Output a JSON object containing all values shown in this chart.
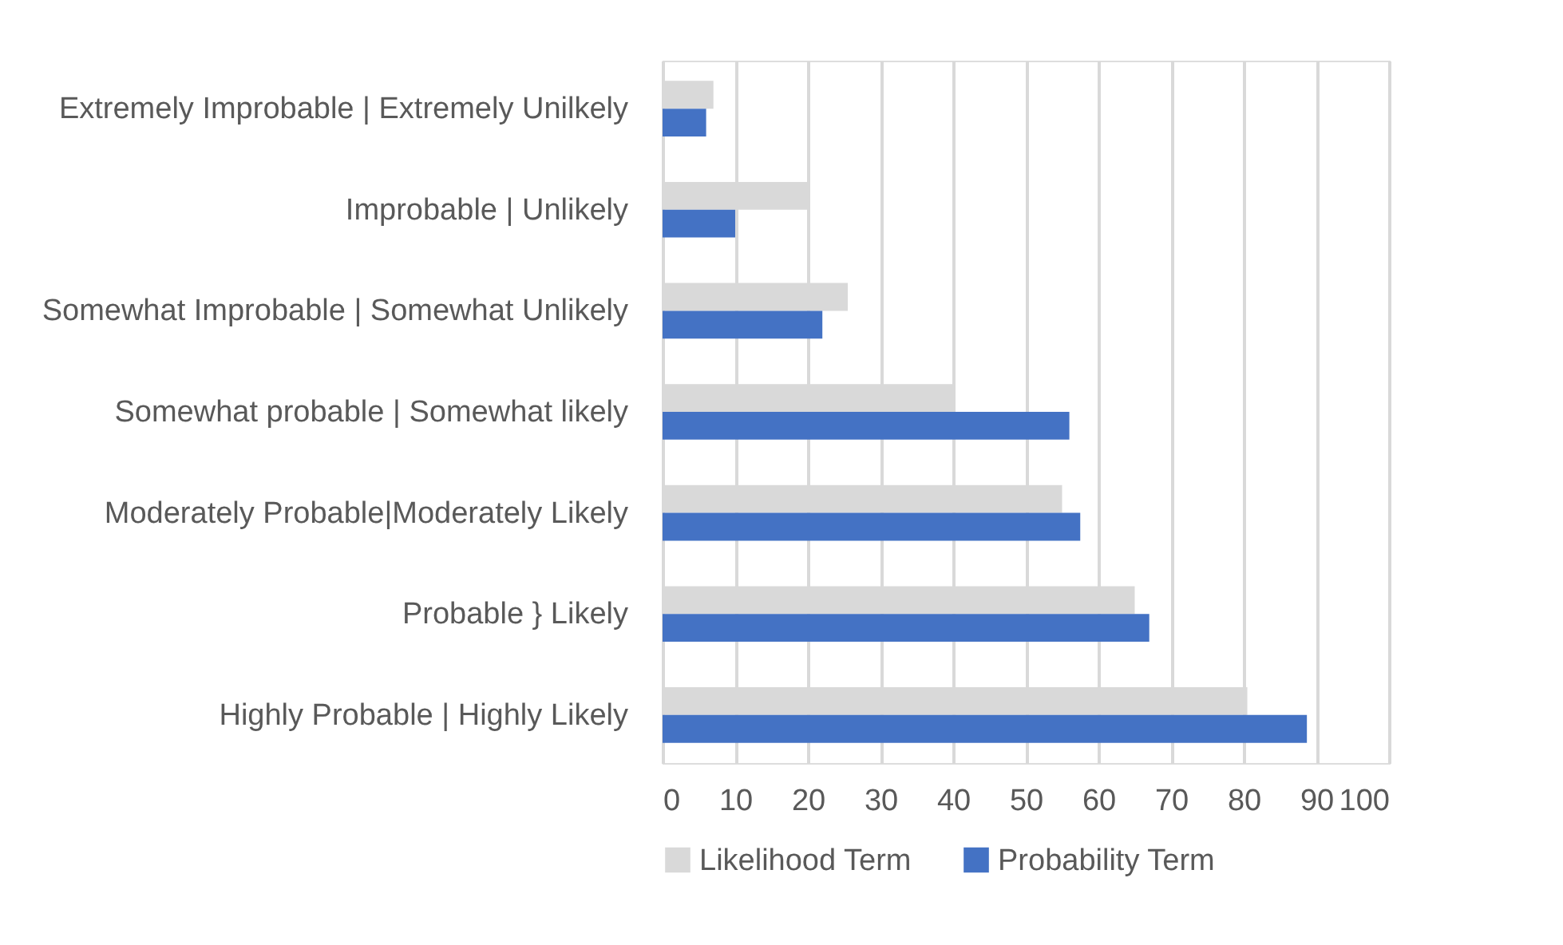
{
  "chart_data": {
    "type": "bar",
    "orientation": "horizontal",
    "categories": [
      "Extremely Improbable | Extremely Unilkely",
      "Improbable | Unlikely",
      "Somewhat Improbable | Somewhat Unlikely",
      "Somewhat probable | Somewhat likely",
      "Moderately Probable|Moderately Likely",
      "Probable } Likely",
      "Highly Probable | Highly Likely"
    ],
    "series": [
      {
        "name": "Likelihood Term",
        "color": "#d9d9d9",
        "values": [
          7,
          20,
          25.5,
          40,
          55,
          65,
          80.5
        ]
      },
      {
        "name": "Probability Term",
        "color": "#4472c4",
        "values": [
          6,
          10,
          22,
          56,
          57.5,
          67,
          88.7
        ]
      }
    ],
    "xlim": [
      0,
      100
    ],
    "xticks": [
      0,
      10,
      20,
      30,
      40,
      50,
      60,
      70,
      80,
      90,
      100
    ],
    "grid": "x",
    "legend": "bottom"
  }
}
